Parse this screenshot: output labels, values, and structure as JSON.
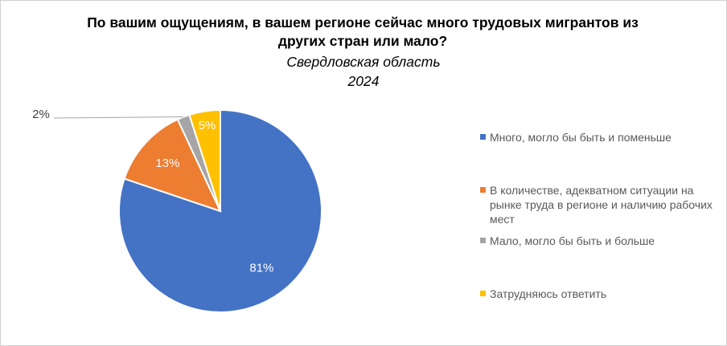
{
  "chart_data": {
    "type": "pie",
    "title": "По вашим ощущениям, в вашем регионе сейчас много трудовых мигрантов из других стран или мало?",
    "subtitle": "Свердловская область",
    "year": "2024",
    "categories": [
      "Много, могло бы быть и поменьше",
      "В количестве, адекватном ситуации на рынке труда в регионе и наличию рабочих мест",
      "Мало, могло бы быть и больше",
      "Затрудняюсь ответить"
    ],
    "values": [
      81,
      13,
      2,
      5
    ],
    "value_labels": [
      "81%",
      "13%",
      "2%",
      "5%"
    ],
    "colors": [
      "#4472c4",
      "#ed7d31",
      "#a5a5a5",
      "#ffc000"
    ],
    "legend": "right"
  }
}
